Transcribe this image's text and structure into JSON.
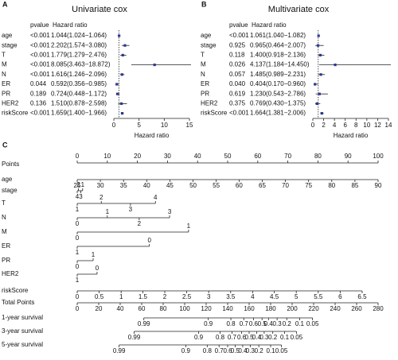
{
  "chart_data": [
    {
      "type": "forest",
      "label": "A",
      "title": "Univariate cox",
      "pvalue_header": "pvalue",
      "hr_header": "Hazard ratio",
      "xlabel": "Hazard ratio",
      "categories": [
        "age",
        "stage",
        "T",
        "M",
        "N",
        "ER",
        "PR",
        "HER2",
        "riskScore"
      ],
      "pvalues": [
        "<0.001",
        "<0.001",
        "<0.001",
        "<0.001",
        "<0.001",
        "0.044",
        "0.189",
        "0.136",
        "<0.001"
      ],
      "hr_labels": [
        "1.044(1.024−1.064)",
        "2.202(1.574−3.080)",
        "1.779(1.279−2.476)",
        "8.085(3.463−18.872)",
        "1.616(1.246−2.096)",
        "0.592(0.356−0.985)",
        "0.724(0.448−1.172)",
        "1.510(0.878−2.598)",
        "1.659(1.400−1.966)"
      ],
      "hr": [
        1.044,
        2.202,
        1.779,
        8.085,
        1.616,
        0.592,
        0.724,
        1.51,
        1.659
      ],
      "lower": [
        1.024,
        1.574,
        1.279,
        3.463,
        1.246,
        0.356,
        0.448,
        0.878,
        1.4
      ],
      "upper": [
        1.064,
        3.08,
        2.476,
        18.872,
        2.096,
        0.985,
        1.172,
        2.598,
        1.966
      ],
      "xlim": [
        0,
        15
      ],
      "xticks": [
        0,
        5,
        10,
        15
      ],
      "ref_line": 1,
      "color": "#2b3990"
    },
    {
      "type": "forest",
      "label": "B",
      "title": "Multivariate cox",
      "pvalue_header": "pvalue",
      "hr_header": "Hazard ratio",
      "xlabel": "Hazard ratio",
      "categories": [
        "age",
        "stage",
        "T",
        "M",
        "N",
        "ER",
        "PR",
        "HER2",
        "riskScore"
      ],
      "pvalues": [
        "<0.001",
        "0.925",
        "0.118",
        "0.026",
        "0.057",
        "0.040",
        "0.619",
        "0.375",
        "<0.001"
      ],
      "hr_labels": [
        "1.061(1.040−1.082)",
        "0.965(0.464−2.007)",
        "1.400(0.918−2.136)",
        "4.137(1.184−14.450)",
        "1.485(0.989−2.231)",
        "0.404(0.170−0.960)",
        "1.230(0.543−2.786)",
        "0.769(0.430−1.375)",
        "1.664(1.381−2.006)"
      ],
      "hr": [
        1.061,
        0.965,
        1.4,
        4.137,
        1.485,
        0.404,
        1.23,
        0.769,
        1.664
      ],
      "lower": [
        1.04,
        0.464,
        0.918,
        1.184,
        0.989,
        0.17,
        0.543,
        0.43,
        1.381
      ],
      "upper": [
        1.082,
        2.007,
        2.136,
        14.45,
        2.231,
        0.96,
        2.786,
        1.375,
        2.006
      ],
      "xlim": [
        0,
        14
      ],
      "xticks": [
        0,
        2,
        4,
        6,
        8,
        10,
        12,
        14
      ],
      "ref_line": 1,
      "color": "#2b3990"
    },
    {
      "type": "nomogram",
      "label": "C",
      "points_axis": {
        "name": "Points",
        "xlim": [
          0,
          100
        ],
        "xticks": [
          0,
          10,
          20,
          30,
          40,
          50,
          60,
          70,
          80,
          90,
          100
        ]
      },
      "rows": [
        {
          "name": "age",
          "labels": [
            25,
            30,
            35,
            40,
            45,
            50,
            55,
            60,
            65,
            70,
            75,
            80,
            85,
            90
          ],
          "points": [
            0,
            7.7,
            15.4,
            23.1,
            30.8,
            38.5,
            46.2,
            53.8,
            61.5,
            69.2,
            76.9,
            84.6,
            92.3,
            100
          ]
        },
        {
          "name": "stage",
          "labels": [
            4,
            2,
            3,
            1
          ],
          "points": [
            0,
            0.4,
            1.2,
            1.8
          ]
        },
        {
          "name": "T",
          "labels": [
            1,
            2,
            3,
            4
          ],
          "points": [
            0,
            8,
            17.7,
            26
          ]
        },
        {
          "name": "N",
          "labels": [
            0,
            1,
            2,
            3
          ],
          "points": [
            0,
            10,
            20.6,
            30.7
          ]
        },
        {
          "name": "M",
          "labels": [
            0,
            1
          ],
          "points": [
            0,
            37
          ]
        },
        {
          "name": "ER",
          "labels": [
            1,
            0
          ],
          "points": [
            0,
            24
          ]
        },
        {
          "name": "PR",
          "labels": [
            0,
            1
          ],
          "points": [
            0,
            5.3
          ]
        },
        {
          "name": "HER2",
          "labels": [
            1,
            0
          ],
          "points": [
            0,
            6.6
          ]
        },
        {
          "name": "riskScore",
          "labels": [
            0,
            0.5,
            1,
            1.5,
            2,
            2.5,
            3,
            3.5,
            4,
            4.5,
            5,
            5.5,
            6,
            6.5
          ],
          "points": [
            0,
            7.3,
            14.6,
            21.8,
            29.1,
            36.4,
            43.7,
            51.0,
            58.3,
            65.5,
            72.8,
            80.1,
            87.4,
            94.7
          ]
        }
      ],
      "total_axis": {
        "name": "Total Points",
        "xlim": [
          0,
          280
        ],
        "xticks": [
          0,
          20,
          40,
          60,
          80,
          100,
          120,
          140,
          160,
          180,
          200,
          220,
          240,
          260,
          280
        ]
      },
      "survival": [
        {
          "name": "1-year survival",
          "labels": [
            0.99,
            0.9,
            0.8,
            0.7,
            0.6,
            0.5,
            0.4,
            0.3,
            0.2,
            0.1,
            0.05
          ],
          "total_points": [
            62,
            122,
            143,
            155,
            164,
            172,
            178,
            186,
            195,
            207,
            219
          ]
        },
        {
          "name": "3-year survival",
          "labels": [
            0.99,
            0.9,
            0.8,
            0.7,
            0.6,
            0.5,
            0.4,
            0.3,
            0.2,
            0.1,
            0.05
          ],
          "total_points": [
            53,
            113,
            133,
            144,
            153,
            160,
            167,
            174,
            182,
            193,
            204
          ]
        },
        {
          "name": "5-year survival",
          "labels": [
            0.99,
            0.9,
            0.8,
            0.7,
            0.6,
            0.5,
            0.4,
            0.3,
            0.2,
            0.1,
            0.05
          ],
          "total_points": [
            39,
            101,
            121,
            132,
            140,
            147,
            154,
            161,
            169,
            180,
            190
          ]
        }
      ]
    }
  ]
}
